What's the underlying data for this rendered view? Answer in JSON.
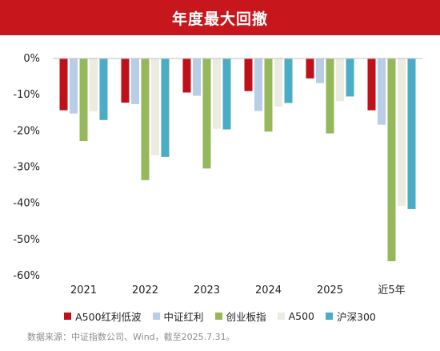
{
  "banner": {
    "title": "年度最大回撤"
  },
  "chart_data": {
    "type": "bar",
    "title": "年度最大回撤",
    "categories": [
      "2021",
      "2022",
      "2023",
      "2024",
      "2025",
      "近5年"
    ],
    "y_ticks": [
      "0%",
      "-10%",
      "-20%",
      "-30%",
      "-40%",
      "-50%",
      "-60%"
    ],
    "ylim": [
      -60,
      0
    ],
    "grid": false,
    "legend_position": "bottom",
    "series": [
      {
        "name": "A500红利低波",
        "color": "#c0101a",
        "values": [
          -14.3,
          -12.2,
          -9.4,
          -9.0,
          -5.5,
          -14.3
        ]
      },
      {
        "name": "中证红利",
        "color": "#b8cde6",
        "values": [
          -15.2,
          -12.6,
          -10.3,
          -14.5,
          -6.8,
          -18.3
        ]
      },
      {
        "name": "创业板指",
        "color": "#94b85a",
        "values": [
          -22.8,
          -33.6,
          -30.4,
          -20.2,
          -20.7,
          -56.0
        ]
      },
      {
        "name": "A500",
        "color": "#ebebe0",
        "values": [
          -14.6,
          -26.7,
          -19.4,
          -13.3,
          -11.8,
          -40.7
        ]
      },
      {
        "name": "沪深300",
        "color": "#4aacc5",
        "values": [
          -17.0,
          -27.2,
          -19.6,
          -12.3,
          -10.5,
          -41.6
        ]
      }
    ]
  },
  "footer": {
    "source": "数据来源：中证指数公司、Wind，截至2025.7.31。"
  }
}
